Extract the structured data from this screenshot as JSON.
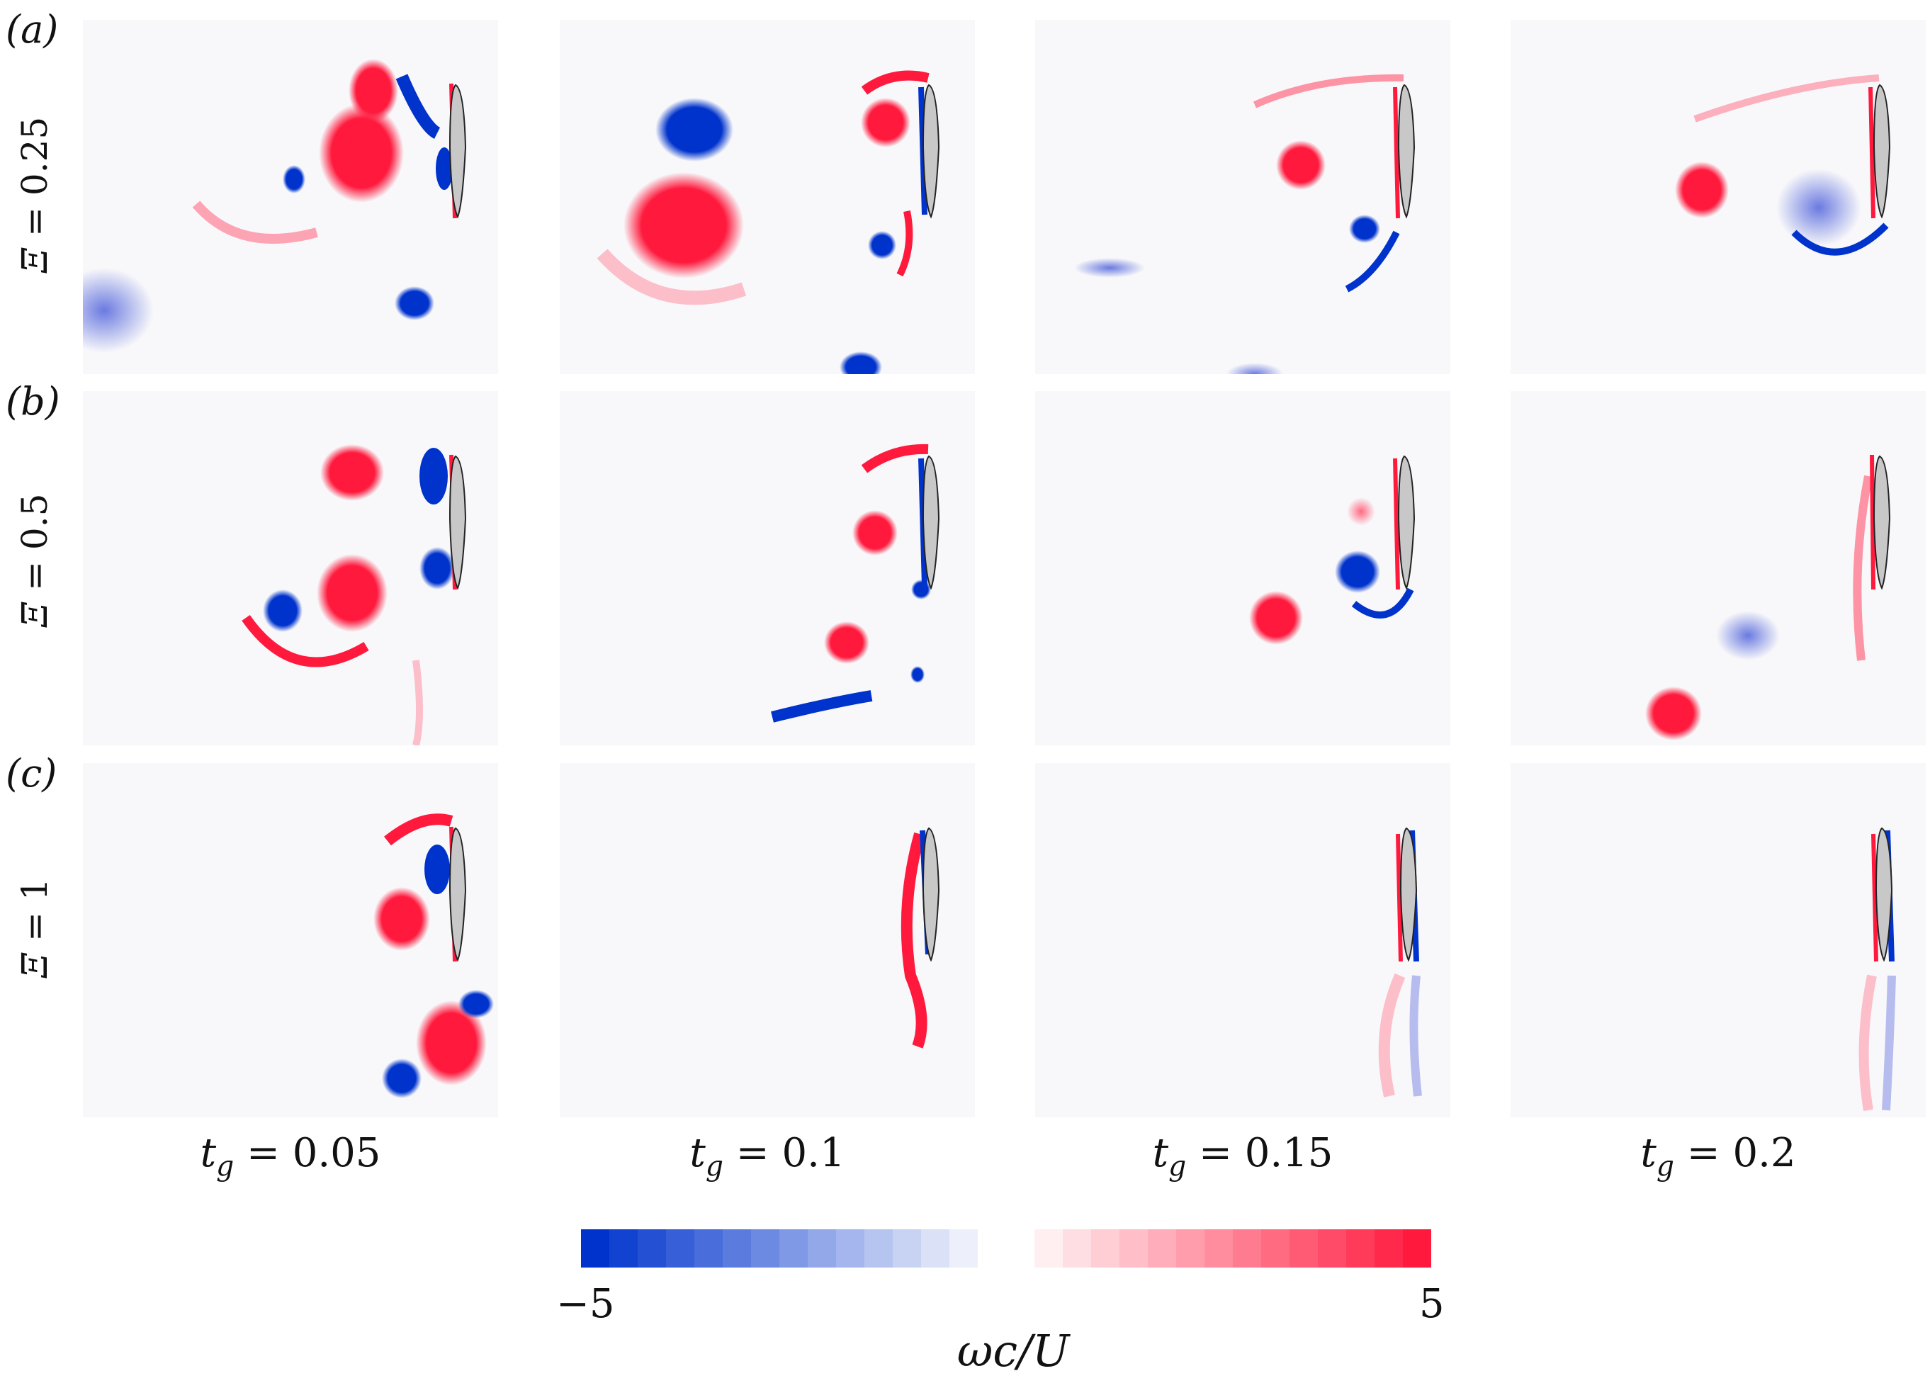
{
  "figure": {
    "rows": [
      {
        "tag": "(a)",
        "xi_symbol": "Ξ",
        "xi_value": "0.25"
      },
      {
        "tag": "(b)",
        "xi_symbol": "Ξ",
        "xi_value": "0.5"
      },
      {
        "tag": "(c)",
        "xi_symbol": "Ξ",
        "xi_value": "1"
      }
    ],
    "columns": [
      {
        "var": "t",
        "sub": "g",
        "value": "0.05"
      },
      {
        "var": "t",
        "sub": "g",
        "value": "0.1"
      },
      {
        "var": "t",
        "sub": "g",
        "value": "0.15"
      },
      {
        "var": "t",
        "sub": "g",
        "value": "0.2"
      }
    ],
    "colorbar": {
      "min_label": "−5",
      "max_label": "5",
      "title": "ωc/U",
      "neg_color": "#0033cc",
      "pos_color": "#ff1a3d",
      "levels": 14
    },
    "icons": [
      "airfoil-icon"
    ]
  }
}
